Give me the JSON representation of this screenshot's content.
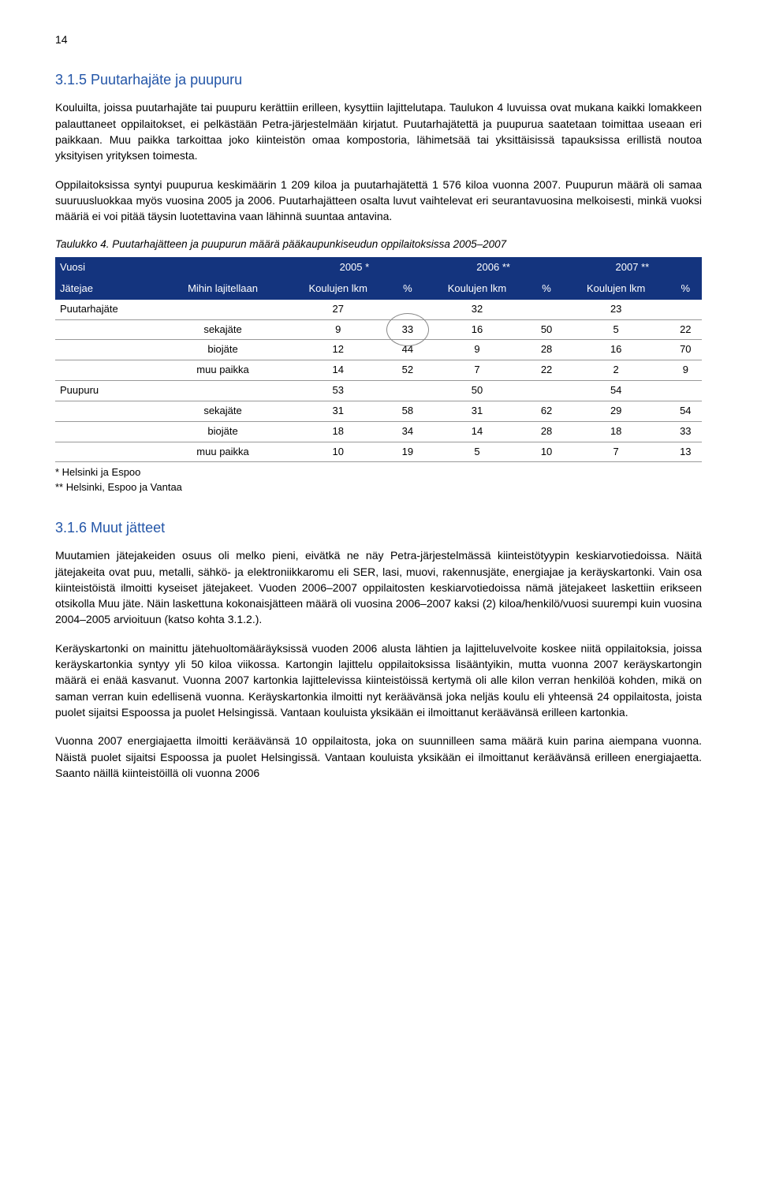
{
  "pageNumber": "14",
  "section1": {
    "heading": "3.1.5  Puutarhajäte ja puupuru",
    "p1": "Kouluilta, joissa puutarhajäte tai puupuru kerättiin erilleen, kysyttiin lajittelutapa. Taulukon 4 luvuissa ovat mukana kaikki lomakkeen palauttaneet oppilaitokset, ei pelkästään Petra-järjestelmään kirjatut. Puutarhajätettä ja puupurua saatetaan toimittaa useaan eri paikkaan. Muu paikka tarkoittaa joko kiinteistön omaa kompostoria, lähimetsää tai yksittäisissä tapauksissa erillistä noutoa yksityisen yrityksen toimesta.",
    "p2": "Oppilaitoksissa syntyi puupurua keskimäärin 1 209 kiloa ja puutarhajätettä 1 576 kiloa vuonna 2007. Puupurun määrä oli samaa suuruusluokkaa myös vuosina 2005 ja 2006. Puutarhajätteen osalta luvut vaihtelevat eri seurantavuosina melkoisesti, minkä vuoksi määriä ei voi pitää täysin luotettavina vaan lähinnä suuntaa antavina.",
    "tableCaption": "Taulukko 4. Puutarhajätteen ja puupurun määrä pääkaupunkiseudun oppilaitoksissa 2005–2007",
    "header": {
      "vuosi": "Vuosi",
      "jatejae": "Jätejae",
      "mihin": "Mihin lajitellaan",
      "lkm": "Koulujen lkm",
      "pct": "%",
      "y2005": "2005 *",
      "y2006": "2006 **",
      "y2007": "2007 **"
    },
    "rows": {
      "puutarhajate": "Puutarhajäte",
      "puupuru": "Puupuru",
      "sekajate": "sekajäte",
      "biojate": "biojäte",
      "muu": "muu paikka",
      "r1": [
        "27",
        "",
        "32",
        "",
        "23",
        ""
      ],
      "r2": [
        "9",
        "33",
        "16",
        "50",
        "5",
        "22"
      ],
      "r3": [
        "12",
        "44",
        "9",
        "28",
        "16",
        "70"
      ],
      "r4": [
        "14",
        "52",
        "7",
        "22",
        "2",
        "9"
      ],
      "r5": [
        "53",
        "",
        "50",
        "",
        "54",
        ""
      ],
      "r6": [
        "31",
        "58",
        "31",
        "62",
        "29",
        "54"
      ],
      "r7": [
        "18",
        "34",
        "14",
        "28",
        "18",
        "33"
      ],
      "r8": [
        "10",
        "19",
        "5",
        "10",
        "7",
        "13"
      ]
    },
    "fn1": "* Helsinki ja Espoo",
    "fn2": "** Helsinki, Espoo ja Vantaa"
  },
  "section2": {
    "heading": "3.1.6  Muut jätteet",
    "p1": "Muutamien jätejakeiden osuus oli melko pieni, eivätkä ne näy Petra-järjestelmässä kiinteistötyypin keskiarvotiedoissa. Näitä jätejakeita ovat puu, metalli, sähkö- ja elektroniikkaromu eli SER, lasi, muovi, rakennusjäte, energiajae ja keräyskartonki. Vain osa kiinteistöistä ilmoitti kyseiset jätejakeet. Vuoden 2006–2007 oppilaitosten keskiarvotiedoissa nämä jätejakeet laskettiin erikseen otsikolla Muu jäte. Näin laskettuna kokonaisjätteen määrä oli vuosina 2006–2007 kaksi (2) kiloa/henkilö/vuosi suurempi kuin vuosina 2004–2005 arvioituun (katso kohta 3.1.2.).",
    "p2": "Keräyskartonki on mainittu jätehuoltomääräyksissä vuoden 2006 alusta lähtien ja lajitteluvelvoite koskee niitä oppilaitoksia, joissa keräyskartonkia syntyy yli 50 kiloa viikossa. Kartongin lajittelu oppilaitoksissa lisääntyikin, mutta vuonna 2007 keräyskartongin määrä ei enää kasvanut. Vuonna 2007 kartonkia lajittelevissa kiinteistöissä kertymä oli alle kilon verran henkilöä kohden, mikä on saman verran kuin edellisenä vuonna. Keräyskartonkia ilmoitti nyt keräävänsä joka neljäs koulu eli yhteensä 24 oppilaitosta, joista puolet sijaitsi Espoossa ja puolet Helsingissä. Vantaan kouluista yksikään ei ilmoittanut keräävänsä erilleen kartonkia.",
    "p3": "Vuonna 2007 energiajaetta ilmoitti keräävänsä 10 oppilaitosta, joka on suunnilleen sama määrä kuin parina aiempana vuonna. Näistä puolet sijaitsi Espoossa ja puolet Helsingissä. Vantaan kouluista yksikään ei ilmoittanut keräävänsä erilleen energiajaetta. Saanto näillä kiinteistöillä oli vuonna 2006"
  },
  "style": {
    "heading_color": "#2456a8",
    "table_header_bg": "#14347e",
    "table_header_fg": "#ffffff",
    "border_color": "#999999"
  }
}
